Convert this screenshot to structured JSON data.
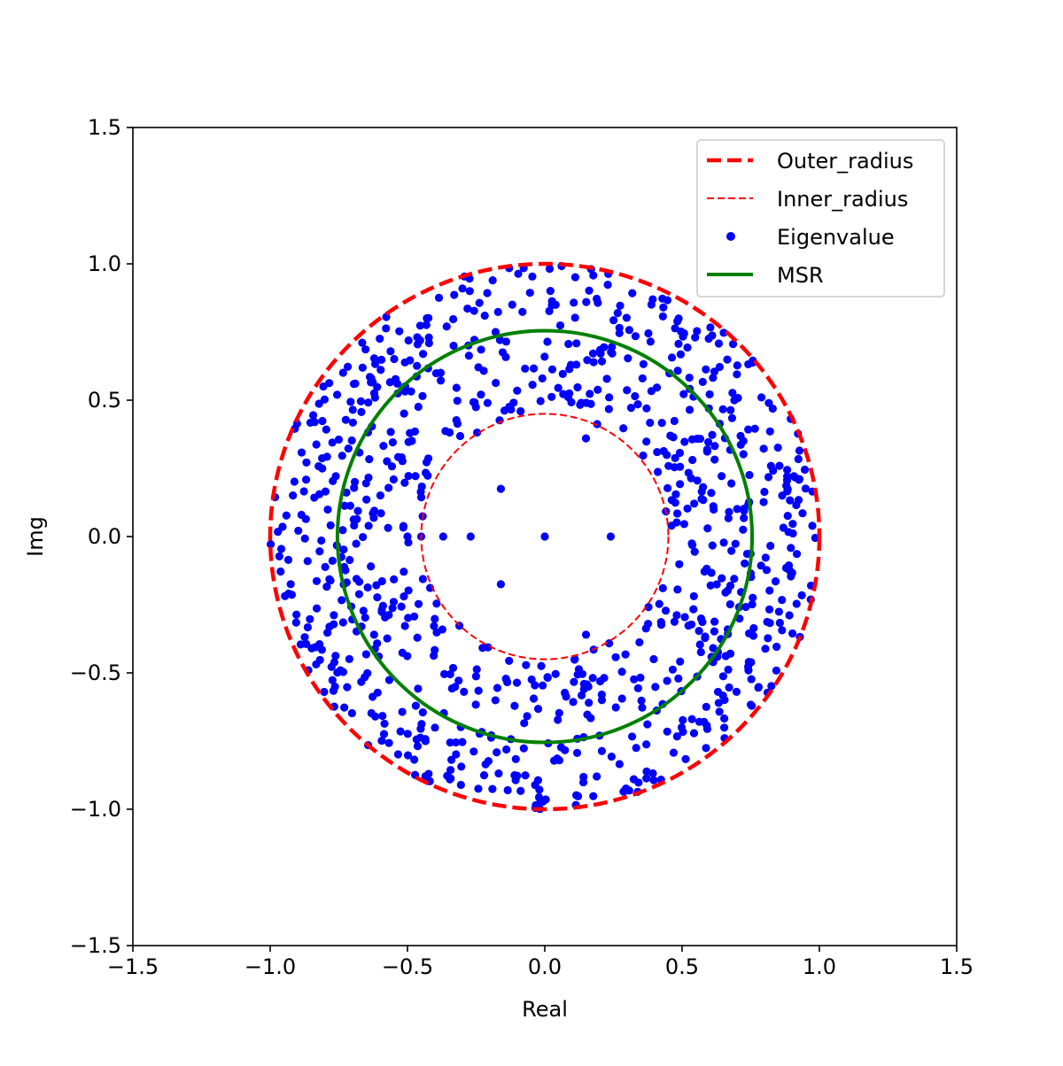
{
  "chart_data": {
    "type": "scatter",
    "title": "",
    "xlabel": "Real",
    "ylabel": "Img",
    "xlim": [
      -1.5,
      1.5
    ],
    "ylim": [
      -1.5,
      1.5
    ],
    "xticks": [
      -1.5,
      -1.0,
      -0.5,
      0.0,
      0.5,
      1.0,
      1.5
    ],
    "yticks": [
      -1.5,
      -1.0,
      -0.5,
      0.0,
      0.5,
      1.0,
      1.5
    ],
    "xtick_labels": [
      "−1.5",
      "−1.0",
      "−0.5",
      "0.0",
      "0.5",
      "1.0",
      "1.5"
    ],
    "ytick_labels": [
      "−1.5",
      "−1.0",
      "−0.5",
      "0.0",
      "0.5",
      "1.0",
      "1.5"
    ],
    "grid": false,
    "legend_position": "top-right",
    "colors": {
      "outer_radius": "#ff0000",
      "inner_radius": "#ff0000",
      "eigenvalue": "#0000ff",
      "msr": "#008000"
    },
    "series": [
      {
        "name": "Outer_radius",
        "kind": "circle",
        "radius": 1.0,
        "style": "dashed-thick"
      },
      {
        "name": "Inner_radius",
        "kind": "circle",
        "radius": 0.45,
        "style": "dashed-thin"
      },
      {
        "name": "Eigenvalue",
        "kind": "scatter",
        "marker": "dot",
        "annulus_min_radius": 0.45,
        "annulus_max_radius": 1.0,
        "points": [
          [
            0.0,
            0.0
          ],
          [
            0.24,
            0.0
          ],
          [
            -0.27,
            0.0
          ],
          [
            -0.16,
            0.175
          ],
          [
            -0.16,
            -0.175
          ],
          [
            0.15,
            0.36
          ],
          [
            0.15,
            -0.36
          ],
          [
            -0.37,
            0.0
          ],
          [
            -0.5,
            0.0
          ],
          [
            -0.45,
            0.0
          ]
        ]
      },
      {
        "name": "MSR",
        "kind": "circle",
        "radius": 0.755,
        "style": "solid"
      }
    ]
  }
}
